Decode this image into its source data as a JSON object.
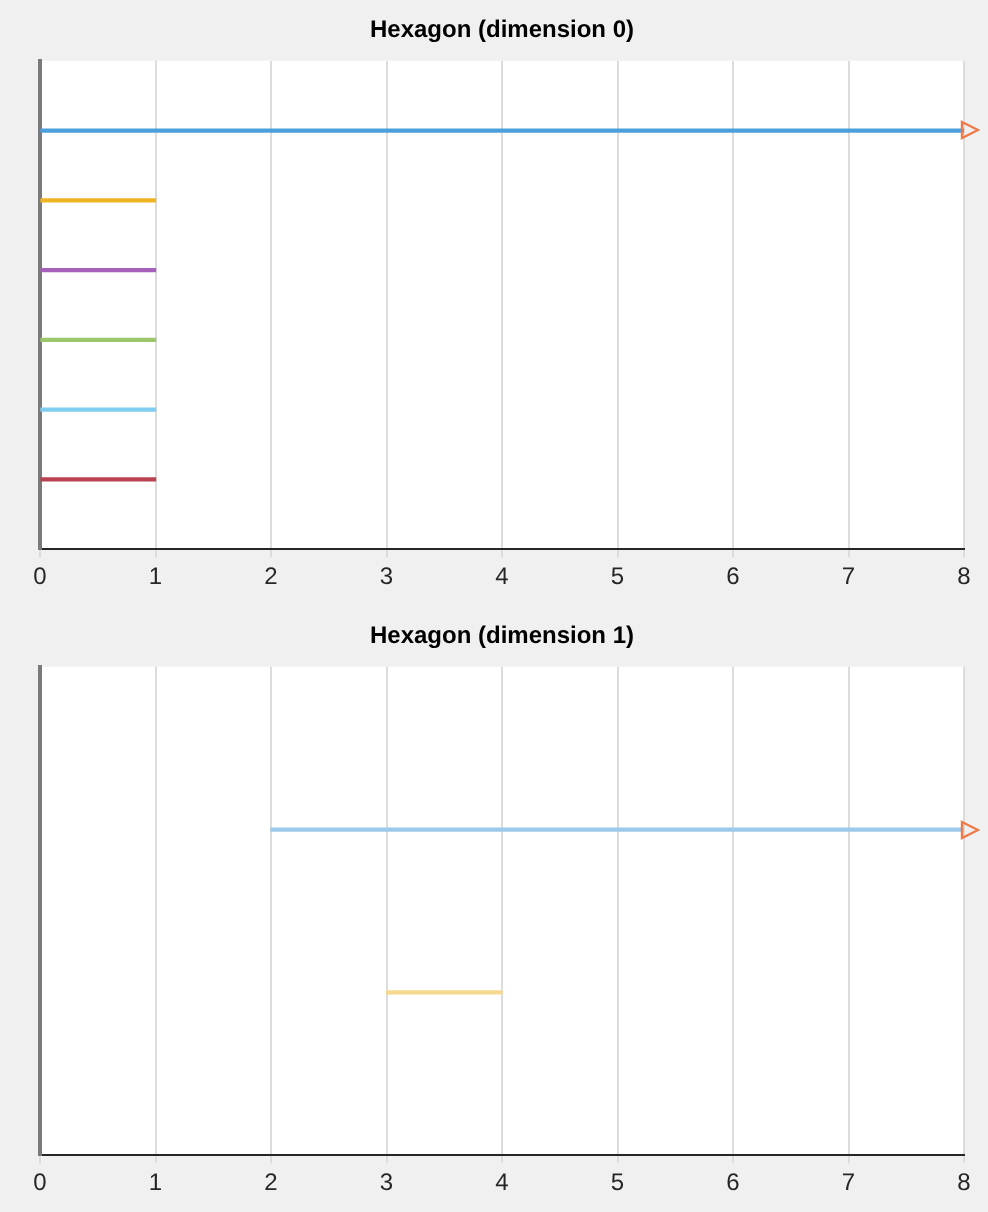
{
  "chart_data": [
    {
      "type": "bar",
      "orientation": "horizontal",
      "title": "Hexagon (dimension 0)",
      "categories": [
        null,
        null,
        null,
        null,
        null,
        null,
        null,
        null
      ],
      "base": [
        null,
        0,
        0,
        0,
        0,
        0,
        0,
        null
      ],
      "values": [
        null,
        8,
        1,
        1,
        1,
        1,
        1,
        null
      ],
      "colors": [
        "#4a9fdc",
        "#4a9fdc",
        "#f0b323",
        "#a65fba",
        "#9bc76a",
        "#7fcdf0",
        "#b8424f",
        "#b8424f"
      ],
      "xlim": [
        0,
        8
      ],
      "xticks": [
        0,
        1,
        2,
        3,
        4,
        5,
        6,
        7,
        8
      ],
      "grid": "x",
      "tick_labels": "x"
    },
    {
      "type": "bar",
      "orientation": "horizontal",
      "title": "Hexagon (dimension 1)",
      "categories": [
        null,
        null,
        null,
        null
      ],
      "base": [
        null,
        2,
        3,
        null
      ],
      "values": [
        null,
        6,
        1,
        null
      ],
      "colors": [
        "#9ecae9",
        "#9ecae9",
        "#f5d98f",
        "#f5d98f"
      ],
      "xlim": [
        0,
        8
      ],
      "xticks": [
        0,
        1,
        2,
        3,
        4,
        5,
        6,
        7,
        8
      ],
      "grid": "x",
      "tick_labels": "x"
    }
  ]
}
